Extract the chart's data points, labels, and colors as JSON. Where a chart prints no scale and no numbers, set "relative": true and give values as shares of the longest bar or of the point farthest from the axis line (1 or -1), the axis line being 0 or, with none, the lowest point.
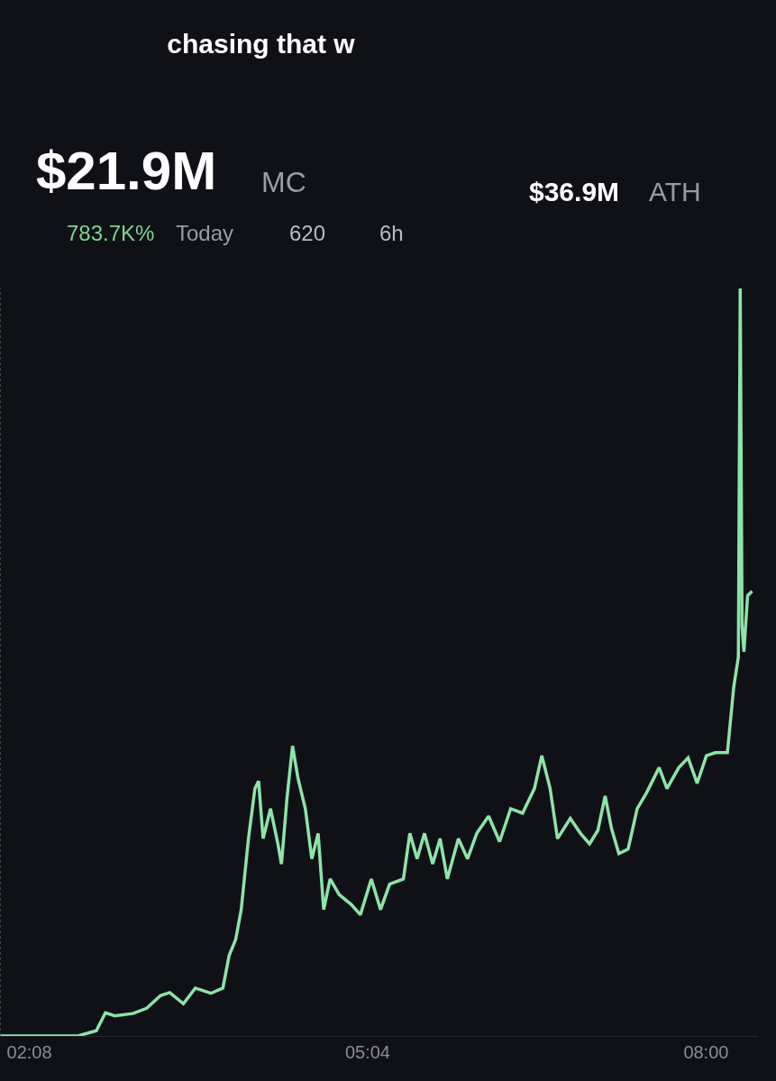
{
  "chart_data": {
    "type": "line",
    "title": "chasing that w",
    "relative": true,
    "annotations": [
      "$21.9M",
      "MC",
      "783.7K%",
      "Today",
      "620",
      "6h",
      "$36.9M",
      "ATH"
    ],
    "xlim": [
      1.879,
      8.45
    ],
    "xticks": [
      {
        "value": 2.1333,
        "label": "02:08"
      },
      {
        "value": 5.0667,
        "label": "05:04"
      },
      {
        "value": 8.0,
        "label": "08:00"
      }
    ],
    "ref_lines": [
      {
        "axis": "x",
        "value": 1.879,
        "label": null,
        "color": "#55575e",
        "line_style": "dotted"
      }
    ],
    "series": [
      {
        "color": "#8de4a8",
        "x": [
          1.879,
          2.555,
          2.714,
          2.793,
          2.873,
          3.032,
          3.151,
          3.27,
          3.35,
          3.469,
          3.572,
          3.707,
          3.811,
          3.866,
          3.922,
          3.97,
          4.033,
          4.089,
          4.121,
          4.16,
          4.224,
          4.288,
          4.319,
          4.367,
          4.415,
          4.462,
          4.526,
          4.582,
          4.637,
          4.685,
          4.741,
          4.82,
          4.923,
          5.003,
          5.098,
          5.178,
          5.257,
          5.376,
          5.432,
          5.495,
          5.559,
          5.63,
          5.694,
          5.757,
          5.853,
          5.932,
          6.012,
          6.115,
          6.21,
          6.306,
          6.409,
          6.512,
          6.576,
          6.648,
          6.712,
          6.823,
          6.911,
          6.99,
          7.062,
          7.125,
          7.181,
          7.244,
          7.324,
          7.403,
          7.483,
          7.593,
          7.661,
          7.764,
          7.844,
          7.923,
          8.003,
          8.082,
          8.185,
          8.24,
          8.28,
          8.296,
          8.312,
          8.328,
          8.36,
          8.399
        ],
        "values": [
          0,
          0,
          0.007,
          0.031,
          0.027,
          0.03,
          0.037,
          0.054,
          0.058,
          0.043,
          0.064,
          0.057,
          0.064,
          0.108,
          0.129,
          0.169,
          0.264,
          0.331,
          0.341,
          0.264,
          0.304,
          0.257,
          0.23,
          0.318,
          0.388,
          0.345,
          0.304,
          0.237,
          0.271,
          0.169,
          0.21,
          0.189,
          0.176,
          0.162,
          0.21,
          0.169,
          0.203,
          0.21,
          0.271,
          0.237,
          0.271,
          0.23,
          0.264,
          0.21,
          0.264,
          0.237,
          0.271,
          0.294,
          0.26,
          0.304,
          0.298,
          0.331,
          0.375,
          0.331,
          0.264,
          0.291,
          0.271,
          0.257,
          0.275,
          0.321,
          0.277,
          0.244,
          0.25,
          0.304,
          0.325,
          0.359,
          0.331,
          0.359,
          0.372,
          0.338,
          0.375,
          0.379,
          0.379,
          0.467,
          0.507,
          1,
          0.548,
          0.514,
          0.589,
          0.595
        ]
      }
    ]
  }
}
